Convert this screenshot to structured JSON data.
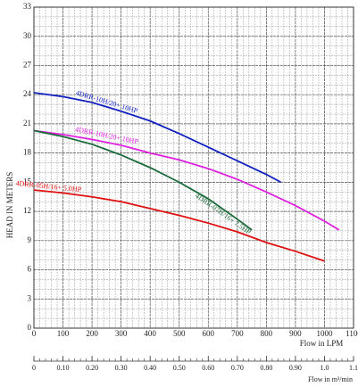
{
  "chart_data": {
    "type": "line",
    "ylabel": "HEAD IN METERS",
    "xlabel": "Flow in LPM",
    "x2label": "Flow in m³/min",
    "xlim": [
      0,
      1100
    ],
    "ylim": [
      0,
      33
    ],
    "xticks": [
      0,
      100,
      200,
      300,
      400,
      500,
      600,
      700,
      800,
      900,
      1000,
      1100
    ],
    "yticks": [
      0,
      3,
      6,
      9,
      12,
      15,
      18,
      21,
      24,
      27,
      30,
      33
    ],
    "x2lim": [
      0,
      1.1
    ],
    "x2ticks": [
      0,
      {
        "value": 0.1,
        "label": "0.10"
      },
      {
        "value": 0.2,
        "label": "0.20"
      },
      {
        "value": 0.3,
        "label": "0.30"
      },
      {
        "value": 0.4,
        "label": "0.40"
      },
      {
        "value": 0.5,
        "label": "0.50"
      },
      {
        "value": 0.6,
        "label": "0.60"
      },
      {
        "value": 0.7,
        "label": "0.70"
      },
      {
        "value": 0.8,
        "label": "0.80"
      },
      {
        "value": 0.9,
        "label": "0.90"
      },
      {
        "value": 1,
        "label": "1.0"
      },
      1.1
    ],
    "grid": true,
    "series": [
      {
        "name": "4DRR-10H/20+ 10HP",
        "color": "#1020c0",
        "x": [
          0,
          100,
          200,
          300,
          400,
          500,
          600,
          700,
          800,
          850
        ],
        "values": [
          24.2,
          23.8,
          23.2,
          22.3,
          21.3,
          20,
          18.6,
          17.2,
          15.8,
          15
        ]
      },
      {
        "name": "4DRR-10H/20+ 10HP",
        "color": "#e020e0",
        "x": [
          0,
          100,
          200,
          300,
          400,
          500,
          600,
          700,
          800,
          900,
          1000,
          1050
        ],
        "values": [
          20.3,
          19.9,
          19.4,
          18.8,
          18,
          17.3,
          16.4,
          15.3,
          14,
          12.6,
          11,
          10.1
        ]
      },
      {
        "name": "4DRR-07H/16+ 7.5HP",
        "color": "#1a6a3a",
        "x": [
          0,
          100,
          200,
          300,
          400,
          500,
          600,
          700,
          750
        ],
        "values": [
          20.3,
          19.7,
          18.9,
          17.8,
          16.5,
          15,
          13.3,
          11.2,
          10.1
        ]
      },
      {
        "name": "4DRR-05H/16+ 5.0HP",
        "color": "#e01010",
        "x": [
          0,
          100,
          200,
          300,
          400,
          500,
          600,
          700,
          800,
          900,
          1000
        ],
        "values": [
          14.2,
          13.9,
          13.5,
          13,
          12.3,
          11.6,
          10.8,
          9.9,
          8.8,
          7.9,
          6.9
        ]
      }
    ]
  }
}
